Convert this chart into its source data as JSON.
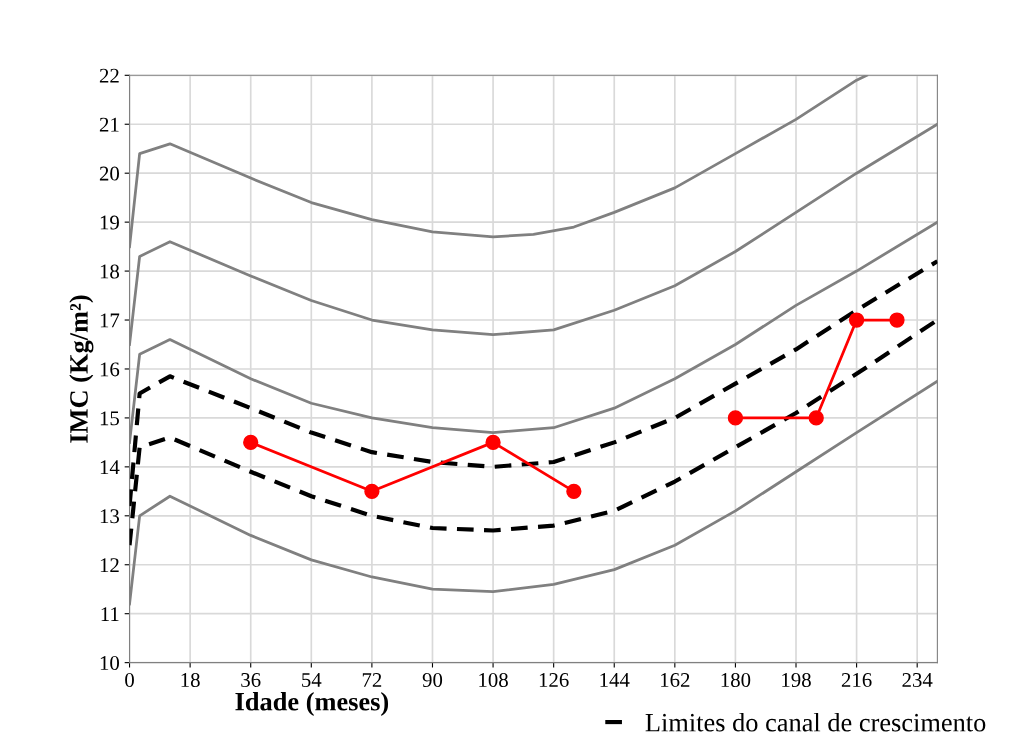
{
  "chart_data": {
    "type": "line",
    "xlabel": "Idade (meses)",
    "ylabel": "IMC (Kg/m²)",
    "xlim": [
      0,
      240
    ],
    "xticks": [
      0,
      18,
      36,
      54,
      72,
      90,
      108,
      126,
      144,
      162,
      180,
      198,
      216,
      234
    ],
    "ylim": [
      10,
      22
    ],
    "yticks": [
      10,
      11,
      12,
      13,
      14,
      15,
      16,
      17,
      18,
      19,
      20,
      21,
      22
    ],
    "grid": true,
    "legend": "bottom right",
    "series": [
      {
        "color": "#808080",
        "line_style": "solid",
        "marker": "none",
        "x": [
          0,
          3,
          12,
          36,
          54,
          72,
          90,
          108,
          120,
          132,
          144,
          162,
          180,
          198,
          216,
          219
        ],
        "values": [
          18.5,
          20.4,
          20.6,
          19.9,
          19.4,
          19.05,
          18.8,
          18.7,
          18.75,
          18.9,
          19.2,
          19.7,
          20.4,
          21.1,
          21.9,
          22
        ]
      },
      {
        "color": "#808080",
        "line_style": "solid",
        "marker": "none",
        "x": [
          0,
          3,
          12,
          36,
          54,
          72,
          90,
          108,
          126,
          144,
          162,
          180,
          198,
          216,
          240
        ],
        "values": [
          16.5,
          18.3,
          18.6,
          17.9,
          17.4,
          17.0,
          16.8,
          16.7,
          16.8,
          17.2,
          17.7,
          18.4,
          19.2,
          20.0,
          21.0
        ]
      },
      {
        "color": "#808080",
        "line_style": "solid",
        "marker": "none",
        "x": [
          0,
          3,
          12,
          36,
          54,
          72,
          90,
          108,
          126,
          144,
          162,
          180,
          198,
          216,
          240
        ],
        "values": [
          14.5,
          16.3,
          16.6,
          15.8,
          15.3,
          15.0,
          14.8,
          14.7,
          14.8,
          15.2,
          15.8,
          16.5,
          17.3,
          18.0,
          19.0
        ]
      },
      {
        "color": "#808080",
        "line_style": "solid",
        "marker": "none",
        "x": [
          0,
          3,
          12,
          36,
          54,
          72,
          90,
          108,
          126,
          144,
          162,
          180,
          198,
          216,
          240
        ],
        "values": [
          11.2,
          13.0,
          13.4,
          12.6,
          12.1,
          11.75,
          11.5,
          11.45,
          11.6,
          11.9,
          12.4,
          13.1,
          13.9,
          14.7,
          15.75
        ]
      },
      {
        "name": "Limites do canal de crescimento",
        "color": "#000000",
        "line_style": "dashed",
        "marker": "none",
        "x": [
          0,
          3,
          12,
          36,
          54,
          72,
          90,
          108,
          126,
          144,
          162,
          180,
          198,
          216,
          240
        ],
        "values": [
          13.2,
          15.5,
          15.85,
          15.2,
          14.7,
          14.3,
          14.1,
          14.0,
          14.1,
          14.5,
          15.0,
          15.7,
          16.4,
          17.2,
          18.2
        ]
      },
      {
        "color": "#000000",
        "line_style": "dashed",
        "marker": "none",
        "x": [
          0,
          3,
          12,
          36,
          54,
          72,
          90,
          108,
          126,
          144,
          162,
          180,
          198,
          216,
          240
        ],
        "values": [
          12.4,
          14.4,
          14.6,
          13.9,
          13.4,
          13.0,
          12.75,
          12.7,
          12.8,
          13.1,
          13.7,
          14.4,
          15.1,
          15.9,
          17.0
        ]
      },
      {
        "color": "#ff0000",
        "line_style": "solid",
        "marker": "circle",
        "x": [
          36,
          72,
          108,
          132,
          156,
          180,
          204,
          216,
          228
        ],
        "values": [
          14.5,
          13.5,
          14.5,
          13.5,
          null,
          15.0,
          15.0,
          17.0,
          17.0
        ]
      }
    ]
  }
}
